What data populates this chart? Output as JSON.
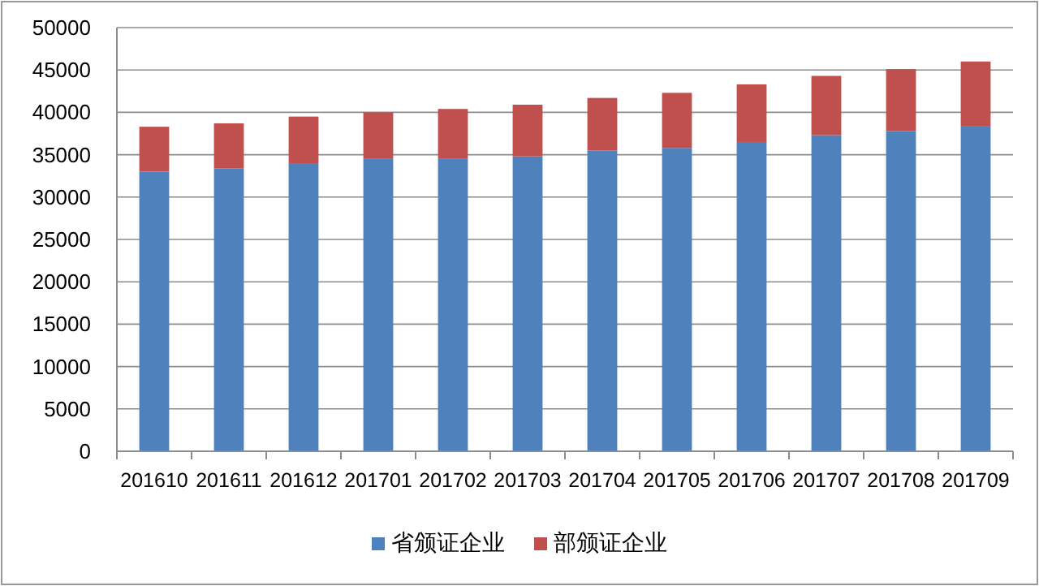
{
  "chart_data": {
    "type": "bar",
    "stacked": true,
    "categories": [
      "201610",
      "201611",
      "201612",
      "201701",
      "201702",
      "201703",
      "201704",
      "201705",
      "201706",
      "201707",
      "201708",
      "201709"
    ],
    "series": [
      {
        "name": "省颁证企业",
        "color": "#4f81bd",
        "values": [
          33000,
          33400,
          34000,
          34500,
          34500,
          34800,
          35500,
          35800,
          36500,
          37300,
          37800,
          38400
        ]
      },
      {
        "name": "部颁证企业",
        "color": "#c0504d",
        "values": [
          5300,
          5300,
          5500,
          5500,
          5900,
          6100,
          6200,
          6500,
          6800,
          7000,
          7300,
          7600
        ]
      }
    ],
    "ylim": [
      0,
      50000
    ],
    "yticks": [
      0,
      5000,
      10000,
      15000,
      20000,
      25000,
      30000,
      35000,
      40000,
      45000,
      50000
    ],
    "grid": "y",
    "legend": "bottom"
  }
}
